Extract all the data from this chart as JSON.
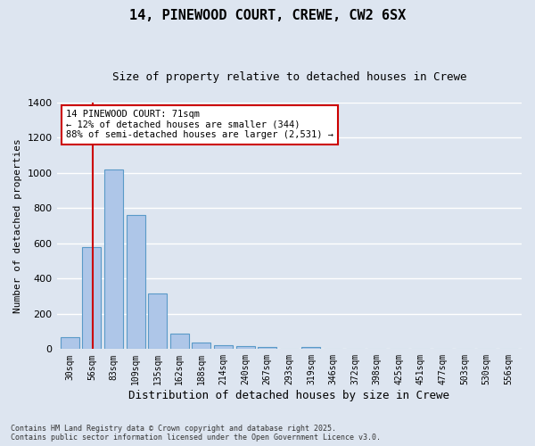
{
  "title": "14, PINEWOOD COURT, CREWE, CW2 6SX",
  "subtitle": "Size of property relative to detached houses in Crewe",
  "xlabel": "Distribution of detached houses by size in Crewe",
  "ylabel": "Number of detached properties",
  "bar_labels": [
    "30sqm",
    "56sqm",
    "83sqm",
    "109sqm",
    "135sqm",
    "162sqm",
    "188sqm",
    "214sqm",
    "240sqm",
    "267sqm",
    "293sqm",
    "319sqm",
    "346sqm",
    "372sqm",
    "398sqm",
    "425sqm",
    "451sqm",
    "477sqm",
    "503sqm",
    "530sqm",
    "556sqm"
  ],
  "bar_values": [
    70,
    580,
    1020,
    760,
    315,
    90,
    35,
    20,
    15,
    10,
    0,
    12,
    0,
    0,
    0,
    0,
    0,
    0,
    0,
    0,
    0
  ],
  "bar_color": "#aec6e8",
  "bar_edge_color": "#5a9ac8",
  "bg_color": "#dde5f0",
  "grid_color": "#ffffff",
  "annotation_text": "14 PINEWOOD COURT: 71sqm\n← 12% of detached houses are smaller (344)\n88% of semi-detached houses are larger (2,531) →",
  "annotation_box_color": "#ffffff",
  "annotation_box_edge": "#cc0000",
  "vline_color": "#cc0000",
  "ylim": [
    0,
    1400
  ],
  "yticks": [
    0,
    200,
    400,
    600,
    800,
    1000,
    1200,
    1400
  ],
  "footer_text": "Contains HM Land Registry data © Crown copyright and database right 2025.\nContains public sector information licensed under the Open Government Licence v3.0.",
  "title_fontsize": 11,
  "subtitle_fontsize": 9,
  "ylabel_fontsize": 8,
  "xlabel_fontsize": 9,
  "tick_fontsize": 7,
  "footer_fontsize": 6
}
